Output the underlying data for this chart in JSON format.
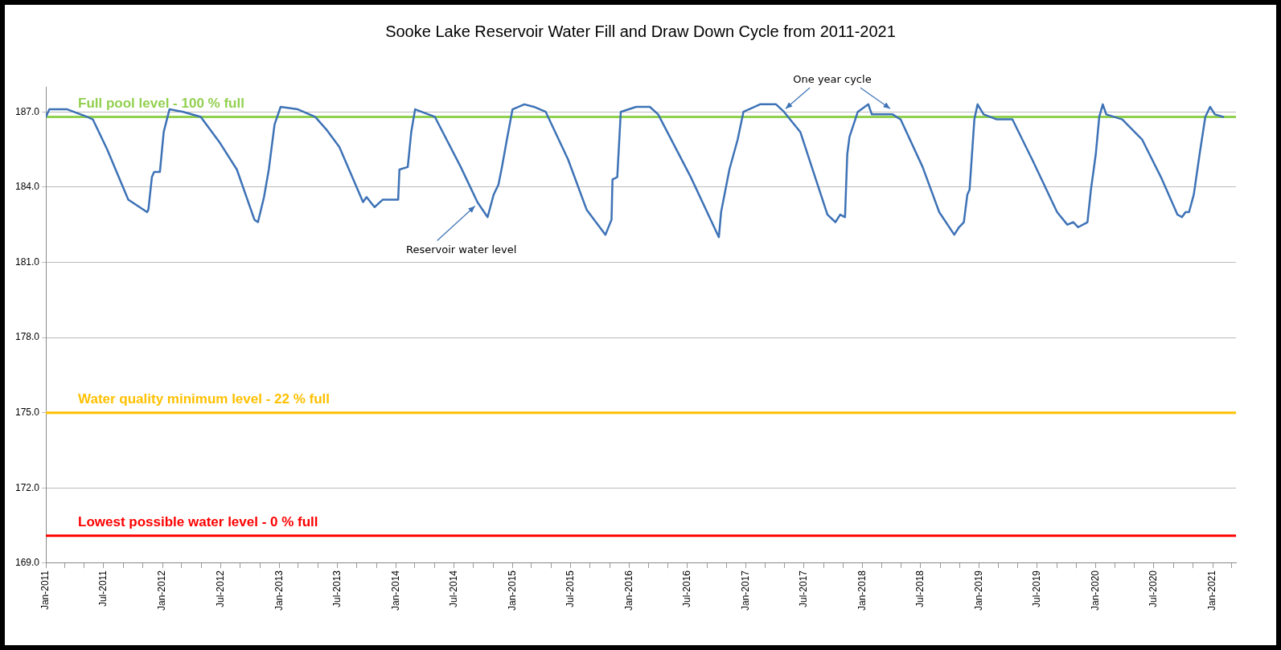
{
  "chart_data": {
    "type": "line",
    "title": "Sooke Lake Reservoir Water Fill and Draw Down Cycle from 2011-2021",
    "series": [
      {
        "color": "#3d72b6",
        "x": [
          "2011-01-01",
          "2011-01-12",
          "2011-03-09",
          "2011-05-10",
          "2011-05-28",
          "2011-07-12",
          "2011-09-16",
          "2011-11-14",
          "2011-11-18",
          "2011-11-29",
          "2011-12-06",
          "2011-12-24",
          "2012-01-05",
          "2012-01-23",
          "2012-03-06",
          "2012-04-30",
          "2012-06-27",
          "2012-08-21",
          "2012-10-15",
          "2012-10-26",
          "2012-11-14",
          "2012-11-29",
          "2012-12-17",
          "2013-01-05",
          "2013-02-28",
          "2013-04-23",
          "2013-05-28",
          "2013-07-08",
          "2013-09-20",
          "2013-10-01",
          "2013-10-26",
          "2013-11-21",
          "2014-01-08",
          "2014-01-12",
          "2014-02-07",
          "2014-02-18",
          "2014-03-02",
          "2014-05-03",
          "2014-07-23",
          "2014-09-13",
          "2014-10-15",
          "2014-11-03",
          "2014-11-18",
          "2014-11-29",
          "2014-12-13",
          "2015-01-01",
          "2015-02-07",
          "2015-03-09",
          "2015-04-15",
          "2015-06-24",
          "2015-08-21",
          "2015-10-19",
          "2015-11-07",
          "2015-11-10",
          "2015-11-25",
          "2015-12-06",
          "2016-01-23",
          "2016-03-06",
          "2016-04-01",
          "2016-07-12",
          "2016-10-08",
          "2016-10-15",
          "2016-11-10",
          "2016-12-06",
          "2016-12-24",
          "2017-02-14",
          "2017-04-05",
          "2017-04-30",
          "2017-06-20",
          "2017-09-13",
          "2017-10-08",
          "2017-10-23",
          "2017-11-07",
          "2017-11-14",
          "2017-11-21",
          "2017-12-17",
          "2018-01-19",
          "2018-01-30",
          "2018-04-05",
          "2018-04-30",
          "2018-07-08",
          "2018-08-29",
          "2018-10-15",
          "2018-10-30",
          "2018-11-14",
          "2018-11-25",
          "2018-12-02",
          "2018-12-17",
          "2018-12-27",
          "2019-01-15",
          "2019-02-25",
          "2019-04-15",
          "2019-06-16",
          "2019-09-02",
          "2019-10-04",
          "2019-10-23",
          "2019-11-07",
          "2019-12-06",
          "2019-12-17",
          "2020-01-01",
          "2020-01-12",
          "2020-01-23",
          "2020-02-03",
          "2020-03-24",
          "2020-05-25",
          "2020-07-23",
          "2020-09-13",
          "2020-09-27",
          "2020-10-08",
          "2020-10-19",
          "2020-11-03",
          "2020-11-21",
          "2020-12-09",
          "2020-12-24",
          "2021-01-08",
          "2021-02-03"
        ],
        "values": [
          186.8,
          187.1,
          187.1,
          186.8,
          186.7,
          185.5,
          183.5,
          183.0,
          183.1,
          184.4,
          184.6,
          184.6,
          186.2,
          187.1,
          187.0,
          186.8,
          185.8,
          184.7,
          182.7,
          182.6,
          183.6,
          184.7,
          186.5,
          187.2,
          187.1,
          186.8,
          186.3,
          185.6,
          183.4,
          183.6,
          183.2,
          183.5,
          183.5,
          184.7,
          184.8,
          186.2,
          187.1,
          186.8,
          184.8,
          183.4,
          182.8,
          183.7,
          184.1,
          184.8,
          185.8,
          187.1,
          187.3,
          187.2,
          187.0,
          185.1,
          183.1,
          182.1,
          182.7,
          184.3,
          184.4,
          187.0,
          187.2,
          187.2,
          186.9,
          184.4,
          182.0,
          183.0,
          184.7,
          185.9,
          187.0,
          187.3,
          187.3,
          187.0,
          186.2,
          182.9,
          182.6,
          182.9,
          182.8,
          185.3,
          186.0,
          187.0,
          187.3,
          186.9,
          186.9,
          186.7,
          184.8,
          183.0,
          182.1,
          182.4,
          182.6,
          183.7,
          183.9,
          186.7,
          187.3,
          186.9,
          186.7,
          186.7,
          185.1,
          183.0,
          182.5,
          182.6,
          182.4,
          182.6,
          183.9,
          185.3,
          186.8,
          187.3,
          186.9,
          186.7,
          185.9,
          184.4,
          182.9,
          182.8,
          183.0,
          183.0,
          183.7,
          185.3,
          186.8,
          187.2,
          186.9,
          186.8
        ]
      }
    ],
    "xlim": [
      "2011-01-01",
      "2021-03-15"
    ],
    "xticks": [
      {
        "value": "2011-01-01",
        "label": "Jan-2011"
      },
      {
        "value": "2011-03-01",
        "label": null
      },
      {
        "value": "2011-05-01",
        "label": null
      },
      {
        "value": "2011-07-01",
        "label": "Jul-2011"
      },
      {
        "value": "2011-09-01",
        "label": null
      },
      {
        "value": "2011-11-01",
        "label": null
      },
      {
        "value": "2012-01-01",
        "label": "Jan-2012"
      },
      {
        "value": "2012-03-01",
        "label": null
      },
      {
        "value": "2012-05-01",
        "label": null
      },
      {
        "value": "2012-07-01",
        "label": "Jul-2012"
      },
      {
        "value": "2012-09-01",
        "label": null
      },
      {
        "value": "2012-11-01",
        "label": null
      },
      {
        "value": "2013-01-01",
        "label": "Jan-2013"
      },
      {
        "value": "2013-03-01",
        "label": null
      },
      {
        "value": "2013-05-01",
        "label": null
      },
      {
        "value": "2013-07-01",
        "label": "Jul-2013"
      },
      {
        "value": "2013-09-01",
        "label": null
      },
      {
        "value": "2013-11-01",
        "label": null
      },
      {
        "value": "2014-01-01",
        "label": "Jan-2014"
      },
      {
        "value": "2014-03-01",
        "label": null
      },
      {
        "value": "2014-05-01",
        "label": null
      },
      {
        "value": "2014-07-01",
        "label": "Jul-2014"
      },
      {
        "value": "2014-09-01",
        "label": null
      },
      {
        "value": "2014-11-01",
        "label": null
      },
      {
        "value": "2015-01-01",
        "label": "Jan-2015"
      },
      {
        "value": "2015-03-01",
        "label": null
      },
      {
        "value": "2015-05-01",
        "label": null
      },
      {
        "value": "2015-07-01",
        "label": "Jul-2015"
      },
      {
        "value": "2015-09-01",
        "label": null
      },
      {
        "value": "2015-11-01",
        "label": null
      },
      {
        "value": "2016-01-01",
        "label": "Jan-2016"
      },
      {
        "value": "2016-03-01",
        "label": null
      },
      {
        "value": "2016-05-01",
        "label": null
      },
      {
        "value": "2016-07-01",
        "label": "Jul-2016"
      },
      {
        "value": "2016-09-01",
        "label": null
      },
      {
        "value": "2016-11-01",
        "label": null
      },
      {
        "value": "2017-01-01",
        "label": "Jan-2017"
      },
      {
        "value": "2017-03-01",
        "label": null
      },
      {
        "value": "2017-05-01",
        "label": null
      },
      {
        "value": "2017-07-01",
        "label": "Jul-2017"
      },
      {
        "value": "2017-09-01",
        "label": null
      },
      {
        "value": "2017-11-01",
        "label": null
      },
      {
        "value": "2018-01-01",
        "label": "Jan-2018"
      },
      {
        "value": "2018-03-01",
        "label": null
      },
      {
        "value": "2018-05-01",
        "label": null
      },
      {
        "value": "2018-07-01",
        "label": "Jul-2018"
      },
      {
        "value": "2018-09-01",
        "label": null
      },
      {
        "value": "2018-11-01",
        "label": null
      },
      {
        "value": "2019-01-01",
        "label": "Jan-2019"
      },
      {
        "value": "2019-03-01",
        "label": null
      },
      {
        "value": "2019-05-01",
        "label": null
      },
      {
        "value": "2019-07-01",
        "label": "Jul-2019"
      },
      {
        "value": "2019-09-01",
        "label": null
      },
      {
        "value": "2019-11-01",
        "label": null
      },
      {
        "value": "2020-01-01",
        "label": "Jan-2020"
      },
      {
        "value": "2020-03-01",
        "label": null
      },
      {
        "value": "2020-05-01",
        "label": null
      },
      {
        "value": "2020-07-01",
        "label": "Jul-2020"
      },
      {
        "value": "2020-09-01",
        "label": null
      },
      {
        "value": "2020-11-01",
        "label": null
      },
      {
        "value": "2021-01-01",
        "label": "Jan-2021"
      },
      {
        "value": "2021-03-01",
        "label": null
      }
    ],
    "ylim": [
      169,
      188
    ],
    "yticks": [
      {
        "value": 169,
        "label": "169.0"
      },
      {
        "value": 172,
        "label": "172.0"
      },
      {
        "value": 175,
        "label": "175.0"
      },
      {
        "value": 178,
        "label": "178.0"
      },
      {
        "value": 181,
        "label": "181.0"
      },
      {
        "value": 184,
        "label": "184.0"
      },
      {
        "value": 187,
        "label": "187.0"
      }
    ],
    "grid": "y",
    "marker": "none",
    "line_style": "solid",
    "ref_lines": [
      {
        "axis": "y",
        "value": 186.8,
        "label": "Full pool level - 100 % full",
        "color": "#92d050"
      },
      {
        "axis": "y",
        "value": 175.0,
        "label": "Water quality minimum level - 22 % full",
        "color": "#ffc000"
      },
      {
        "axis": "y",
        "value": 170.1,
        "label": "Lowest possible water level - 0 % full",
        "color": "#ff0000"
      }
    ],
    "annotations": [
      {
        "text": "Reservoir water level",
        "x": "2014-09-13",
        "y": 183.4
      },
      {
        "text": "One year cycle",
        "x": "2017-04-30",
        "y": 187.0
      }
    ]
  }
}
